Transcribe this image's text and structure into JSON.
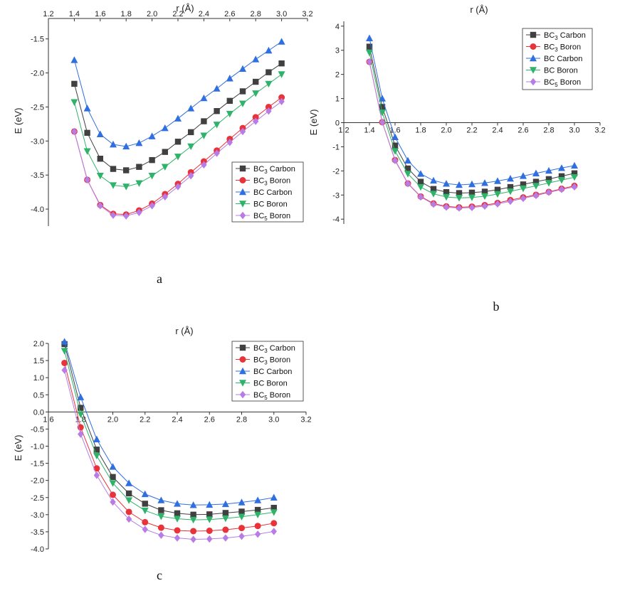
{
  "series_styles": [
    {
      "color": "#404040",
      "marker": "square"
    },
    {
      "color": "#e8333a",
      "marker": "circle"
    },
    {
      "color": "#2f6fe0",
      "marker": "triangle-up"
    },
    {
      "color": "#2fb36a",
      "marker": "triangle-down"
    },
    {
      "color": "#b77ce6",
      "marker": "diamond"
    }
  ],
  "legend_entries": [
    {
      "base": "BC",
      "sub": "3",
      "rest": " Carbon"
    },
    {
      "base": "BC",
      "sub": "3",
      "rest": " Boron"
    },
    {
      "base": "BC",
      "sub": "",
      "rest": " Carbon"
    },
    {
      "base": "BC",
      "sub": "",
      "rest": " Boron"
    },
    {
      "base": "BC",
      "sub": "5",
      "rest": " Boron"
    }
  ],
  "chart_data": [
    {
      "panel_label": "a",
      "type": "line",
      "xlabel": "r (Å)",
      "ylabel": "E (eV)",
      "xlim": [
        1.2,
        3.2
      ],
      "ylim": [
        -4.25,
        -1.2
      ],
      "xticks": [
        "1.2",
        "1.4",
        "1.6",
        "1.8",
        "2.0",
        "2.2",
        "2.4",
        "2.6",
        "2.8",
        "3.0",
        "3.2"
      ],
      "yticks": [
        "-4.0",
        "-3.5",
        "-3.0",
        "-2.5",
        "-2.0",
        "-1.5"
      ],
      "x_axis_at": "top",
      "legend": "bottom-right",
      "x": [
        1.4,
        1.5,
        1.6,
        1.7,
        1.8,
        1.9,
        2.0,
        2.1,
        2.2,
        2.3,
        2.4,
        2.5,
        2.6,
        2.7,
        2.8,
        2.9,
        3.0
      ],
      "series": [
        {
          "name": "BC3 Carbon",
          "values": [
            -2.16,
            -2.88,
            -3.26,
            -3.41,
            -3.43,
            -3.38,
            -3.28,
            -3.16,
            -3.01,
            -2.87,
            -2.71,
            -2.56,
            -2.41,
            -2.27,
            -2.13,
            -1.99,
            -1.86
          ]
        },
        {
          "name": "BC3 Boron",
          "values": [
            -2.86,
            -3.57,
            -3.94,
            -4.07,
            -4.08,
            -4.02,
            -3.92,
            -3.78,
            -3.63,
            -3.46,
            -3.3,
            -3.14,
            -2.97,
            -2.81,
            -2.65,
            -2.5,
            -2.36
          ]
        },
        {
          "name": "BC Carbon",
          "values": [
            -1.81,
            -2.52,
            -2.9,
            -3.05,
            -3.08,
            -3.03,
            -2.93,
            -2.81,
            -2.67,
            -2.52,
            -2.37,
            -2.23,
            -2.08,
            -1.94,
            -1.8,
            -1.67,
            -1.54
          ]
        },
        {
          "name": "BC Boron",
          "values": [
            -2.43,
            -3.15,
            -3.51,
            -3.65,
            -3.67,
            -3.62,
            -3.51,
            -3.38,
            -3.23,
            -3.08,
            -2.92,
            -2.76,
            -2.6,
            -2.45,
            -2.3,
            -2.16,
            -2.02
          ]
        },
        {
          "name": "BC5 Boron",
          "values": [
            -2.86,
            -3.57,
            -3.95,
            -4.09,
            -4.1,
            -4.05,
            -3.95,
            -3.82,
            -3.67,
            -3.51,
            -3.35,
            -3.18,
            -3.02,
            -2.86,
            -2.71,
            -2.56,
            -2.42
          ]
        }
      ]
    },
    {
      "panel_label": "b",
      "type": "line",
      "xlabel": "r (Å)",
      "ylabel": "E (eV)",
      "xlim": [
        1.2,
        3.2
      ],
      "ylim": [
        -4.2,
        4.2
      ],
      "xticks": [
        "1.2",
        "1.4",
        "1.6",
        "1.8",
        "2.0",
        "2.2",
        "2.4",
        "2.6",
        "2.8",
        "3.0",
        "3.2"
      ],
      "yticks": [
        "-4",
        "-3",
        "-2",
        "-1",
        "0",
        "1",
        "2",
        "3",
        "4"
      ],
      "x_axis_at": "zero",
      "legend": "top-right",
      "x": [
        1.4,
        1.5,
        1.6,
        1.7,
        1.8,
        1.9,
        2.0,
        2.1,
        2.2,
        2.3,
        2.4,
        2.5,
        2.6,
        2.7,
        2.8,
        2.9,
        3.0
      ],
      "series": [
        {
          "name": "BC3 Carbon",
          "values": [
            3.15,
            0.65,
            -0.95,
            -1.9,
            -2.45,
            -2.75,
            -2.88,
            -2.92,
            -2.9,
            -2.86,
            -2.78,
            -2.67,
            -2.56,
            -2.45,
            -2.34,
            -2.22,
            -2.1
          ]
        },
        {
          "name": "BC3 Boron",
          "values": [
            2.52,
            0.02,
            -1.55,
            -2.52,
            -3.06,
            -3.35,
            -3.47,
            -3.51,
            -3.48,
            -3.42,
            -3.33,
            -3.21,
            -3.1,
            -2.99,
            -2.87,
            -2.74,
            -2.62
          ]
        },
        {
          "name": "BC Carbon",
          "values": [
            3.5,
            1.0,
            -0.6,
            -1.57,
            -2.12,
            -2.4,
            -2.53,
            -2.58,
            -2.55,
            -2.5,
            -2.42,
            -2.32,
            -2.21,
            -2.1,
            -1.99,
            -1.88,
            -1.78
          ]
        },
        {
          "name": "BC Boron",
          "values": [
            2.9,
            0.42,
            -1.18,
            -2.12,
            -2.67,
            -2.95,
            -3.08,
            -3.12,
            -3.1,
            -3.05,
            -2.96,
            -2.85,
            -2.73,
            -2.62,
            -2.5,
            -2.38,
            -2.26
          ]
        },
        {
          "name": "BC5 Boron",
          "values": [
            2.52,
            0.02,
            -1.57,
            -2.53,
            -3.08,
            -3.38,
            -3.5,
            -3.54,
            -3.52,
            -3.46,
            -3.37,
            -3.26,
            -3.14,
            -3.02,
            -2.89,
            -2.77,
            -2.66
          ]
        }
      ]
    },
    {
      "panel_label": "c",
      "type": "line",
      "xlabel": "r (Å)",
      "ylabel": "E (eV)",
      "xlim": [
        1.6,
        3.2
      ],
      "ylim": [
        -4.0,
        2.0
      ],
      "xticks": [
        "1.6",
        "1.8",
        "2.0",
        "2.2",
        "2.4",
        "2.6",
        "2.8",
        "3.0",
        "3.2"
      ],
      "yticks": [
        "-4.0",
        "-3.5",
        "-3.0",
        "-2.5",
        "-2.0",
        "-1.5",
        "-1.0",
        "-0.5",
        "0.0",
        "0.5",
        "1.0",
        "1.5",
        "2.0"
      ],
      "x_axis_at": "zero",
      "legend": "top-right",
      "x": [
        1.7,
        1.8,
        1.9,
        2.0,
        2.1,
        2.2,
        2.3,
        2.4,
        2.5,
        2.6,
        2.7,
        2.8,
        2.9,
        3.0
      ],
      "series": [
        {
          "name": "BC3 Carbon",
          "values": [
            1.98,
            0.12,
            -1.1,
            -1.9,
            -2.38,
            -2.68,
            -2.87,
            -2.96,
            -3.0,
            -2.99,
            -2.95,
            -2.91,
            -2.86,
            -2.8
          ]
        },
        {
          "name": "BC3 Boron",
          "values": [
            1.43,
            -0.45,
            -1.65,
            -2.42,
            -2.92,
            -3.22,
            -3.38,
            -3.46,
            -3.48,
            -3.47,
            -3.44,
            -3.39,
            -3.33,
            -3.25
          ]
        },
        {
          "name": "BC Carbon",
          "values": [
            2.05,
            0.43,
            -0.8,
            -1.6,
            -2.08,
            -2.4,
            -2.58,
            -2.68,
            -2.72,
            -2.71,
            -2.69,
            -2.64,
            -2.58,
            -2.5
          ]
        },
        {
          "name": "BC Boron",
          "values": [
            1.78,
            -0.07,
            -1.28,
            -2.08,
            -2.58,
            -2.88,
            -3.05,
            -3.12,
            -3.15,
            -3.14,
            -3.11,
            -3.06,
            -3.0,
            -2.93
          ]
        },
        {
          "name": "BC5 Boron",
          "values": [
            1.22,
            -0.65,
            -1.85,
            -2.63,
            -3.13,
            -3.43,
            -3.6,
            -3.68,
            -3.72,
            -3.71,
            -3.68,
            -3.63,
            -3.57,
            -3.49
          ]
        }
      ]
    }
  ]
}
